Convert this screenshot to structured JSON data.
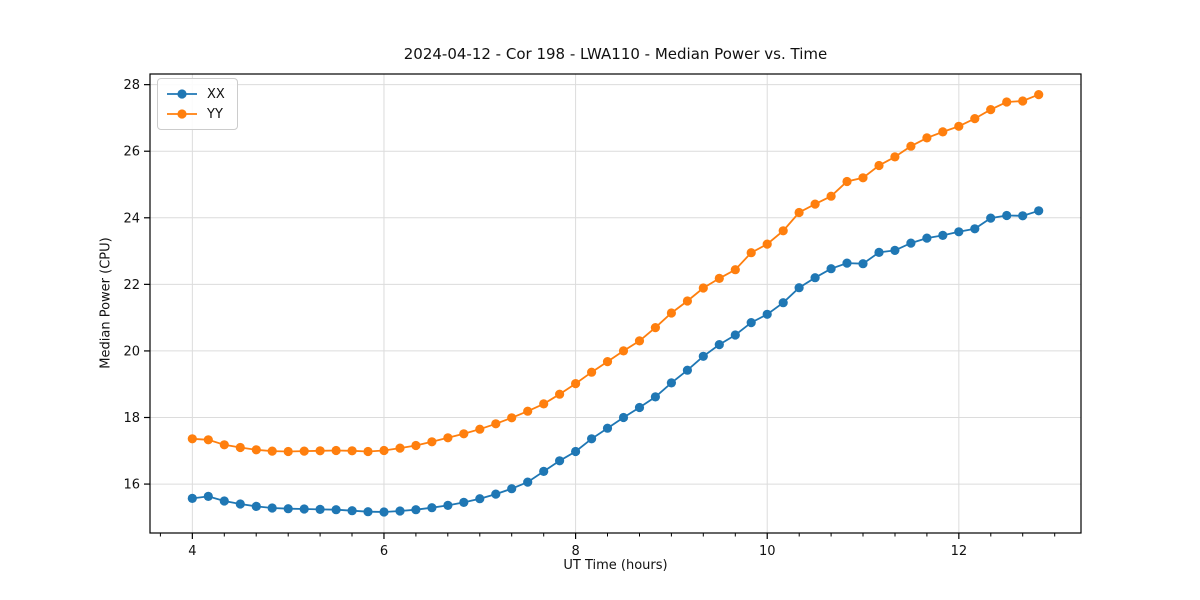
{
  "chart_data": {
    "type": "line",
    "title": "2024-04-12 - Cor 198 - LWA110 - Median Power vs. Time",
    "xlabel": "UT Time (hours)",
    "ylabel": "Median Power (CPU)",
    "xlim": [
      3.558,
      13.275
    ],
    "ylim": [
      14.53,
      28.32
    ],
    "x_ticks": [
      4,
      6,
      8,
      10,
      12
    ],
    "x_minor_tick_step": 0.3333,
    "y_ticks": [
      16,
      18,
      20,
      22,
      24,
      26,
      28
    ],
    "grid": true,
    "grid_color": "#dcdcdc",
    "spine_color": "#000000",
    "legend": {
      "position": "upper left",
      "entries": [
        "XX",
        "YY"
      ]
    },
    "x": [
      4.0,
      4.167,
      4.333,
      4.5,
      4.667,
      4.833,
      5.0,
      5.167,
      5.333,
      5.5,
      5.667,
      5.833,
      6.0,
      6.167,
      6.333,
      6.5,
      6.667,
      6.833,
      7.0,
      7.167,
      7.333,
      7.5,
      7.667,
      7.833,
      8.0,
      8.167,
      8.333,
      8.5,
      8.667,
      8.833,
      9.0,
      9.167,
      9.333,
      9.5,
      9.667,
      9.833,
      10.0,
      10.167,
      10.333,
      10.5,
      10.667,
      10.833,
      11.0,
      11.167,
      11.333,
      11.5,
      11.667,
      11.833,
      12.0,
      12.167,
      12.333,
      12.5,
      12.667,
      12.833
    ],
    "series": [
      {
        "name": "XX",
        "color": "#1f77b4",
        "marker": "o",
        "values": [
          15.57,
          15.63,
          15.49,
          15.4,
          15.33,
          15.28,
          15.26,
          15.25,
          15.24,
          15.23,
          15.2,
          15.17,
          15.16,
          15.19,
          15.23,
          15.29,
          15.36,
          15.45,
          15.56,
          15.7,
          15.86,
          16.06,
          16.38,
          16.7,
          16.98,
          17.36,
          17.68,
          18.0,
          18.3,
          18.62,
          19.04,
          19.42,
          19.84,
          20.19,
          20.48,
          20.85,
          21.1,
          21.45,
          21.9,
          22.2,
          22.47,
          22.64,
          22.62,
          22.96,
          23.02,
          23.24,
          23.39,
          23.47,
          23.58,
          23.67,
          23.99,
          24.07,
          24.06,
          24.21
        ]
      },
      {
        "name": "YY",
        "color": "#ff7f0e",
        "marker": "o",
        "values": [
          17.36,
          17.33,
          17.18,
          17.1,
          17.03,
          16.99,
          16.98,
          16.99,
          17.0,
          17.01,
          17.0,
          16.98,
          17.01,
          17.08,
          17.16,
          17.27,
          17.39,
          17.51,
          17.65,
          17.81,
          17.99,
          18.19,
          18.41,
          18.7,
          19.02,
          19.36,
          19.68,
          20.0,
          20.3,
          20.7,
          21.14,
          21.5,
          21.89,
          22.18,
          22.44,
          22.95,
          23.21,
          23.61,
          24.16,
          24.41,
          24.65,
          25.09,
          25.2,
          25.57,
          25.83,
          26.15,
          26.4,
          26.58,
          26.75,
          26.98,
          27.25,
          27.48,
          27.51,
          27.7
        ]
      }
    ]
  }
}
